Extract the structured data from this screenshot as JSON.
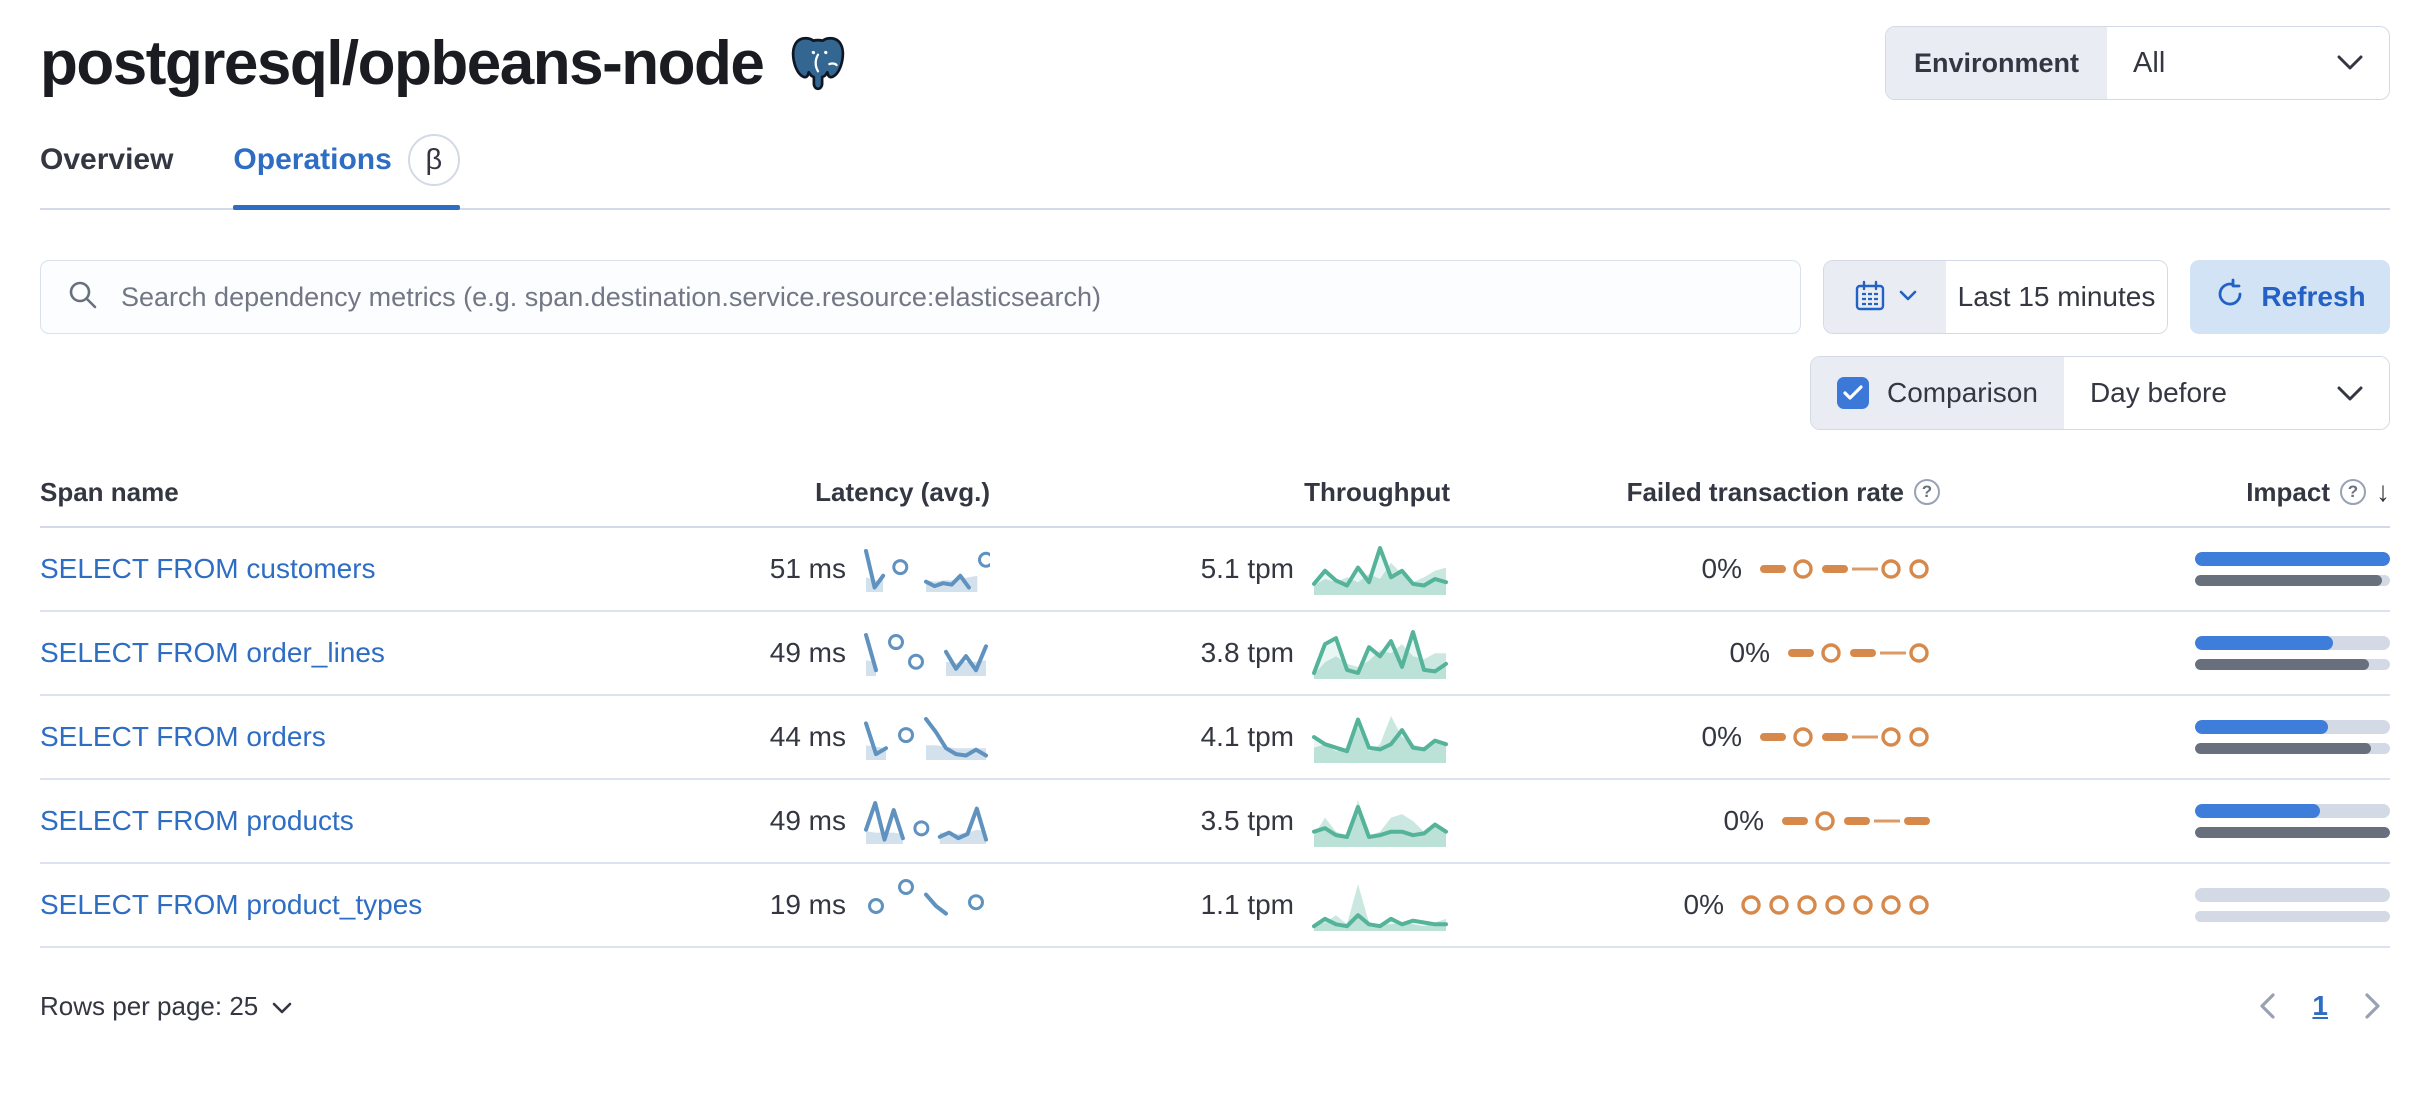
{
  "page": {
    "title": "postgresql/opbeans-node"
  },
  "environment": {
    "label": "Environment",
    "value": "All"
  },
  "tabs": [
    {
      "label": "Overview",
      "active": false
    },
    {
      "label": "Operations",
      "active": true,
      "badge": "β"
    }
  ],
  "search": {
    "placeholder": "Search dependency metrics (e.g. span.destination.service.resource:elasticsearch)"
  },
  "time_picker": {
    "value": "Last 15 minutes"
  },
  "refresh": {
    "label": "Refresh"
  },
  "comparison": {
    "label": "Comparison",
    "checked": true,
    "value": "Day before"
  },
  "icons": {
    "help": "?",
    "sort_desc": "↓"
  },
  "colors": {
    "accent": "#2e6dc4",
    "latency_spark": "#6092c0",
    "latency_fill": "rgba(96,146,192,0.28)",
    "throughput_spark": "#54b399",
    "throughput_fill": "rgba(84,179,153,0.30)",
    "throughput_fill_light": "rgba(84,179,153,0.12)",
    "failed_spark": "#d6894b",
    "impact_current": "#3e7dda",
    "impact_previous": "#69707d",
    "impact_track": "#d3dae6"
  },
  "table": {
    "columns": [
      "Span name",
      "Latency (avg.)",
      "Throughput",
      "Failed transaction rate",
      "Impact"
    ],
    "rows": [
      {
        "span_name": "SELECT FROM customers",
        "latency": "51 ms",
        "throughput": "5.1 tpm",
        "failed_rate": "0%",
        "latency_spark": {
          "curr": [
            26,
            1,
            9,
            null,
            15,
            null,
            null,
            5,
            2,
            4,
            3,
            9,
            1,
            null,
            20
          ],
          "prev": [
            8,
            6,
            6,
            null,
            null,
            null,
            null,
            6,
            5,
            6,
            6,
            7,
            8,
            9,
            null
          ]
        },
        "throughput_spark": {
          "curr": [
            5,
            13,
            7,
            4,
            15,
            6,
            27,
            9,
            13,
            5,
            4,
            8,
            6
          ],
          "prev": [
            4,
            8,
            6,
            9,
            6,
            11,
            8,
            18,
            11,
            6,
            9,
            13,
            15
          ]
        },
        "failed_spark": [
          "d",
          "c",
          "d",
          "t",
          "c",
          "c"
        ],
        "impact": {
          "current": 100,
          "previous": 96
        }
      },
      {
        "span_name": "SELECT FROM order_lines",
        "latency": "49 ms",
        "throughput": "3.8 tpm",
        "failed_rate": "0%",
        "latency_spark": {
          "curr": [
            27,
            2,
            null,
            22,
            null,
            8,
            null,
            null,
            15,
            3,
            12,
            2,
            19
          ],
          "prev": [
            9,
            8,
            null,
            null,
            null,
            null,
            null,
            null,
            8,
            7,
            8,
            8,
            9
          ]
        },
        "throughput_spark": {
          "curr": [
            2,
            21,
            25,
            4,
            2,
            19,
            13,
            23,
            6,
            29,
            4,
            3,
            8
          ],
          "prev": [
            1,
            9,
            13,
            8,
            6,
            10,
            17,
            15,
            21,
            13,
            11,
            15,
            15
          ]
        },
        "failed_spark": [
          "d",
          "c",
          "d",
          "t",
          "c"
        ],
        "impact": {
          "current": 71,
          "previous": 89
        }
      },
      {
        "span_name": "SELECT FROM orders",
        "latency": "44 ms",
        "throughput": "4.1 tpm",
        "failed_rate": "0%",
        "latency_spark": {
          "curr": [
            23,
            2,
            6,
            null,
            15,
            null,
            26,
            17,
            6,
            2,
            1,
            5,
            1
          ],
          "prev": [
            8,
            7,
            6,
            null,
            null,
            null,
            8,
            8,
            7,
            6,
            6,
            6,
            6
          ]
        },
        "throughput_spark": {
          "curr": [
            13,
            9,
            7,
            5,
            23,
            7,
            6,
            9,
            17,
            7,
            6,
            11,
            9
          ],
          "prev": [
            7,
            9,
            5,
            7,
            19,
            5,
            9,
            25,
            13,
            9,
            7,
            11,
            9
          ]
        },
        "failed_spark": [
          "d",
          "c",
          "d",
          "t",
          "c",
          "c"
        ],
        "impact": {
          "current": 68,
          "previous": 90
        }
      },
      {
        "span_name": "SELECT FROM products",
        "latency": "49 ms",
        "throughput": "3.5 tpm",
        "failed_rate": "0%",
        "latency_spark": {
          "curr": [
            8,
            27,
            1,
            22,
            2,
            null,
            9,
            null,
            3,
            6,
            2,
            5,
            23,
            1
          ],
          "prev": [
            7,
            6,
            6,
            6,
            5,
            null,
            null,
            null,
            6,
            6,
            5,
            6,
            8,
            7
          ]
        },
        "throughput_spark": {
          "curr": [
            7,
            9,
            5,
            4,
            21,
            4,
            5,
            7,
            7,
            5,
            6,
            11,
            7
          ],
          "prev": [
            5,
            15,
            7,
            5,
            25,
            5,
            7,
            15,
            17,
            13,
            7,
            11,
            7
          ]
        },
        "failed_spark": [
          "d",
          "c",
          "d",
          "t",
          "d"
        ],
        "impact": {
          "current": 64,
          "previous": 100
        }
      },
      {
        "span_name": "SELECT FROM product_types",
        "latency": "19 ms",
        "throughput": "1.1 tpm",
        "failed_rate": "0%",
        "latency_spark": {
          "curr": [
            null,
            5,
            null,
            null,
            10,
            null,
            8,
            5,
            3,
            null,
            null,
            6,
            null
          ],
          "prev": [
            null,
            null,
            null,
            null,
            null,
            null,
            null,
            null,
            null,
            null,
            null,
            null,
            null
          ]
        },
        "throughput_spark": {
          "curr": [
            1,
            5,
            2,
            1,
            7,
            2,
            1,
            5,
            2,
            4,
            3,
            2,
            2
          ],
          "prev": [
            1,
            3,
            7,
            2,
            24,
            3,
            2,
            2,
            3,
            2,
            1,
            3,
            5
          ]
        },
        "failed_spark": [
          "c",
          "c",
          "c",
          "c",
          "c",
          "c",
          "c"
        ],
        "impact": {
          "current": 0,
          "previous": 0
        }
      }
    ]
  },
  "footer": {
    "rows_per_page_label": "Rows per page: 25",
    "page": "1"
  }
}
